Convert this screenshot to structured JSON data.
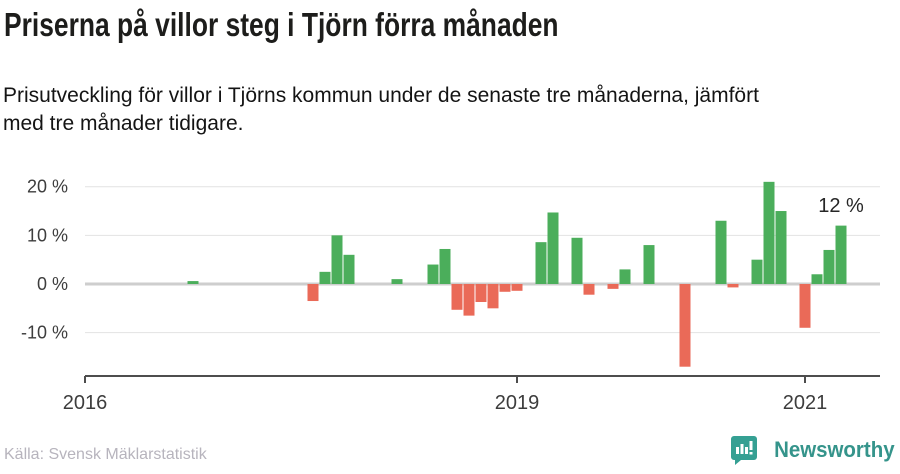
{
  "header": {
    "title": "Priserna på villor steg i Tjörn förra månaden",
    "subtitle": "Prisutveckling för villor i Tjörns kommun under de senaste tre månaderna, jämfört\nmed tre månader tidigare."
  },
  "footer": {
    "source": "Källa: Svensk Mäklarstatistik",
    "brand": "Newsworthy"
  },
  "chart_data": {
    "type": "bar",
    "title": "Priserna på villor steg i Tjörn förra månaden",
    "unit": "%",
    "grid": true,
    "ylim": [
      -18,
      22
    ],
    "y_ticks": [
      {
        "label": "20 %",
        "value": 20
      },
      {
        "label": "10 %",
        "value": 10
      },
      {
        "label": "0 %",
        "value": 0
      },
      {
        "label": "-10 %",
        "value": -10
      }
    ],
    "x_ticks": [
      {
        "label": "2016",
        "month": "2016-01"
      },
      {
        "label": "2019",
        "month": "2019-01"
      },
      {
        "label": "2021",
        "month": "2021-01"
      }
    ],
    "bars": [
      {
        "month": "2016-10",
        "value": 0.6
      },
      {
        "month": "2017-08",
        "value": -3.5
      },
      {
        "month": "2017-09",
        "value": 2.5
      },
      {
        "month": "2017-10",
        "value": 10
      },
      {
        "month": "2017-11",
        "value": 6
      },
      {
        "month": "2018-03",
        "value": 1
      },
      {
        "month": "2018-06",
        "value": 4
      },
      {
        "month": "2018-07",
        "value": 7.2
      },
      {
        "month": "2018-08",
        "value": -5.3
      },
      {
        "month": "2018-09",
        "value": -6.5
      },
      {
        "month": "2018-10",
        "value": -3.7
      },
      {
        "month": "2018-11",
        "value": -5
      },
      {
        "month": "2018-12",
        "value": -1.6
      },
      {
        "month": "2019-01",
        "value": -1.4
      },
      {
        "month": "2019-03",
        "value": 8.6
      },
      {
        "month": "2019-04",
        "value": 14.7
      },
      {
        "month": "2019-06",
        "value": 9.5
      },
      {
        "month": "2019-07",
        "value": -2.2
      },
      {
        "month": "2019-09",
        "value": -1
      },
      {
        "month": "2019-10",
        "value": 3
      },
      {
        "month": "2019-12",
        "value": 8
      },
      {
        "month": "2020-03",
        "value": -17
      },
      {
        "month": "2020-06",
        "value": 13
      },
      {
        "month": "2020-07",
        "value": -0.7
      },
      {
        "month": "2020-09",
        "value": 5
      },
      {
        "month": "2020-10",
        "value": 21
      },
      {
        "month": "2020-11",
        "value": 15
      },
      {
        "month": "2021-01",
        "value": -9
      },
      {
        "month": "2021-02",
        "value": 2
      },
      {
        "month": "2021-03",
        "value": 7
      },
      {
        "month": "2021-04",
        "value": 12
      }
    ],
    "annotation": {
      "text": "12 %",
      "bar_month": "2021-04"
    },
    "colors": {
      "positive": "#4bae5b",
      "negative": "#ea6a58",
      "gridline": "#e2e2e2",
      "zeroline": "#cecece",
      "axis": "#4d4d4d",
      "brand_teal": "#35a093"
    }
  }
}
